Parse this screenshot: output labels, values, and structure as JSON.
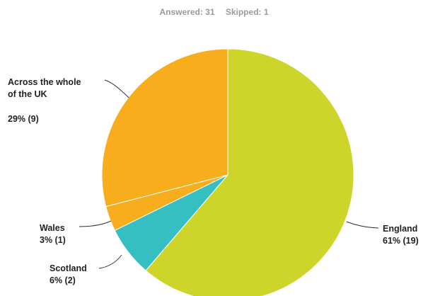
{
  "summary": {
    "answered": "Answered: 31",
    "skipped": "Skipped: 1"
  },
  "chart_data": {
    "type": "pie",
    "title": "",
    "slices": [
      {
        "name": "England",
        "percent_label": "61% (19)",
        "value": 19,
        "color": "#cdd42a"
      },
      {
        "name": "Scotland",
        "percent_label": "6% (2)",
        "value": 2,
        "color": "#36bfc2"
      },
      {
        "name": "Wales",
        "percent_label": "3% (1)",
        "value": 1,
        "color": "#f7ad1c"
      },
      {
        "name": "Across the whole of the UK",
        "percent_label": "29% (9)",
        "value": 9,
        "color": "#f7ad1c"
      }
    ],
    "start_position": "top, clockwise",
    "legend": "none"
  }
}
